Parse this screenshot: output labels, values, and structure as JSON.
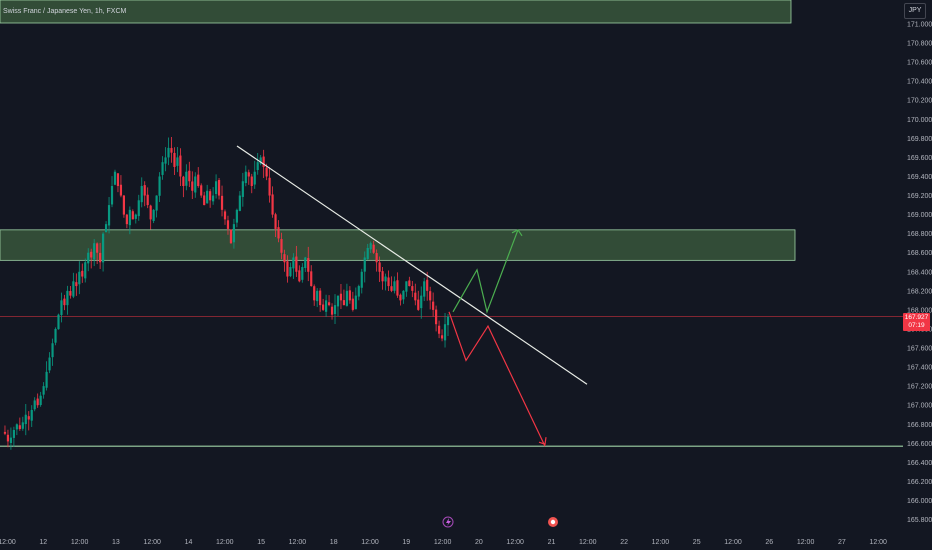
{
  "symbol_title": "Swiss Franc / Japanese Yen, 1h, FXCM",
  "currency_button": "JPY",
  "last_price": {
    "value": "167.927",
    "countdown": "07:19"
  },
  "colors": {
    "background": "#131722",
    "up": "#089981",
    "down": "#f23645",
    "zone_fill": "#3d5f3f",
    "zone_stroke": "#9fd3a6",
    "trendline": "#e8ece6",
    "bull_arrow": "#4caf50",
    "bear_arrow": "#f23645",
    "support_line": "#9fd3a6"
  },
  "event_markers": [
    {
      "icon": "lightning-icon",
      "near": "19 12:00"
    },
    {
      "icon": "flag-event-icon",
      "near": "21"
    }
  ],
  "chart_data": {
    "type": "candlestick",
    "title": "Swiss Franc / Japanese Yen, 1h, FXCM",
    "ylim": [
      165.8,
      171.2
    ],
    "y_ticks": [
      "171.000",
      "170.800",
      "170.600",
      "170.400",
      "170.200",
      "170.000",
      "169.800",
      "169.600",
      "169.400",
      "169.200",
      "169.000",
      "168.800",
      "168.600",
      "168.400",
      "168.200",
      "168.000",
      "167.800",
      "167.600",
      "167.400",
      "167.200",
      "167.000",
      "166.800",
      "166.600",
      "166.400",
      "166.200",
      "166.000",
      "165.800"
    ],
    "x_ticks": [
      "12:00",
      "12",
      "12:00",
      "13",
      "12:00",
      "14",
      "12:00",
      "15",
      "12:00",
      "18",
      "12:00",
      "19",
      "12:00",
      "20",
      "12:00",
      "21",
      "12:00",
      "22",
      "12:00",
      "25",
      "12:00",
      "26",
      "12:00",
      "27",
      "12:00"
    ],
    "close_path": [
      166.72,
      166.7,
      166.62,
      166.66,
      166.74,
      166.8,
      166.75,
      166.82,
      166.9,
      166.85,
      166.95,
      167.05,
      167.0,
      167.1,
      167.2,
      167.35,
      167.5,
      167.65,
      167.8,
      167.95,
      168.1,
      168.05,
      168.2,
      168.15,
      168.3,
      168.25,
      168.4,
      168.35,
      168.5,
      168.6,
      168.55,
      168.7,
      168.6,
      168.5,
      168.8,
      168.9,
      169.1,
      169.3,
      169.45,
      169.3,
      169.2,
      169.0,
      168.9,
      169.05,
      168.95,
      169.0,
      169.15,
      169.3,
      169.2,
      169.1,
      168.95,
      169.05,
      169.2,
      169.4,
      169.55,
      169.6,
      169.7,
      169.65,
      169.5,
      169.6,
      169.4,
      169.3,
      169.45,
      169.35,
      169.25,
      169.4,
      169.3,
      169.2,
      169.1,
      169.25,
      169.15,
      169.2,
      169.35,
      169.2,
      169.05,
      168.95,
      168.85,
      168.7,
      168.9,
      169.05,
      169.2,
      169.35,
      169.45,
      169.4,
      169.3,
      169.45,
      169.55,
      169.6,
      169.5,
      169.4,
      169.2,
      169.0,
      168.85,
      168.75,
      168.6,
      168.5,
      168.35,
      168.45,
      168.55,
      168.4,
      168.3,
      168.45,
      168.55,
      168.4,
      168.25,
      168.1,
      168.2,
      168.05,
      168.0,
      168.1,
      168.05,
      167.95,
      168.05,
      168.15,
      168.1,
      168.05,
      168.2,
      168.1,
      168.0,
      168.15,
      168.25,
      168.4,
      168.55,
      168.65,
      168.7,
      168.6,
      168.5,
      168.4,
      168.3,
      168.35,
      168.25,
      168.2,
      168.3,
      168.15,
      168.1,
      168.2,
      168.3,
      168.25,
      168.2,
      168.1,
      168.0,
      168.15,
      168.3,
      168.2,
      168.1,
      168.0,
      167.85,
      167.75,
      167.7,
      167.85,
      167.93
    ],
    "annotations": {
      "resistance_zone": [
        168.52,
        168.84
      ],
      "top_zone": [
        171.2,
        171.44
      ],
      "support_line": 166.57,
      "current_price_line": 167.93,
      "trendline": [
        [
          "14 12:00",
          169.72
        ],
        [
          "22",
          167.22
        ]
      ],
      "bullish_path": [
        167.98,
        168.42,
        167.98,
        168.84
      ],
      "bearish_path": [
        167.98,
        167.47,
        167.83,
        166.57
      ]
    }
  }
}
